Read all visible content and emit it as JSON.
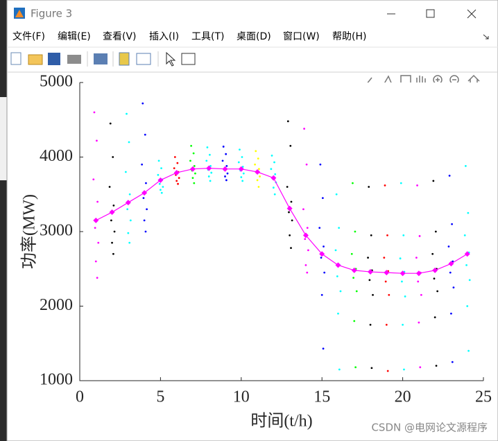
{
  "window": {
    "title": "Figure 3",
    "menu": [
      "文件(F)",
      "编辑(E)",
      "查看(V)",
      "插入(I)",
      "工具(T)",
      "桌面(D)",
      "窗口(W)",
      "帮助(H)"
    ]
  },
  "watermark": "CSDN @电网论文源程序",
  "chart_data": {
    "type": "scatter",
    "xlabel": "时间(t/h)",
    "ylabel": "功率(MW)",
    "xlim": [
      0,
      25
    ],
    "ylim": [
      1000,
      5000
    ],
    "xticks": [
      0,
      5,
      10,
      15,
      20,
      25
    ],
    "yticks": [
      1000,
      2000,
      3000,
      4000,
      5000
    ],
    "series": [
      {
        "color": "#ff00ff",
        "x": [
          0.9,
          1.05,
          0.85,
          1.1,
          0.95,
          1.15,
          1,
          1.08
        ],
        "values": [
          4600,
          4220,
          3700,
          3400,
          3050,
          2850,
          2600,
          2380
        ]
      },
      {
        "color": "#000000",
        "x": [
          1.9,
          2.05,
          1.85,
          2.1,
          1.95,
          2.15,
          2,
          2.08
        ],
        "values": [
          4450,
          4000,
          3600,
          3350,
          3150,
          3000,
          2850,
          2700
        ]
      },
      {
        "color": "#00ffff",
        "x": [
          2.9,
          3.05,
          2.85,
          3.1,
          2.95,
          3.15,
          3,
          3.08
        ],
        "values": [
          4580,
          4200,
          3800,
          3500,
          3300,
          3150,
          2980,
          2850
        ]
      },
      {
        "color": "#0000ff",
        "x": [
          3.9,
          4.05,
          3.85,
          4.1,
          3.95,
          4.15,
          4,
          4.08
        ],
        "values": [
          4720,
          4300,
          3900,
          3650,
          3450,
          3300,
          3150,
          3000
        ]
      },
      {
        "color": "#00ffff",
        "x": [
          4.9,
          5.05,
          4.85,
          5.1,
          4.95,
          5.15,
          5,
          5.08
        ],
        "values": [
          3950,
          3850,
          3760,
          3700,
          3640,
          3600,
          3560,
          3520
        ]
      },
      {
        "color": "#ff0000",
        "x": [
          5.9,
          6.05,
          5.85,
          6.1,
          5.95,
          6.15,
          6,
          6.08
        ],
        "values": [
          4000,
          3920,
          3850,
          3800,
          3760,
          3720,
          3680,
          3640
        ]
      },
      {
        "color": "#00ff00",
        "x": [
          6.9,
          7.05,
          6.85,
          7.1,
          6.95,
          7.15,
          7,
          7.08
        ],
        "values": [
          4150,
          4050,
          3950,
          3880,
          3820,
          3780,
          3720,
          3650
        ]
      },
      {
        "color": "#00ffff",
        "x": [
          7.9,
          8.05,
          7.85,
          8.1,
          7.95,
          8.15,
          8,
          8.08
        ],
        "values": [
          4130,
          4030,
          3950,
          3880,
          3830,
          3790,
          3740,
          3680
        ]
      },
      {
        "color": "#0000ff",
        "x": [
          8.9,
          9.05,
          8.85,
          9.1,
          8.95,
          9.15,
          9,
          9.08
        ],
        "values": [
          4140,
          4040,
          3950,
          3880,
          3830,
          3780,
          3740,
          3690
        ]
      },
      {
        "color": "#00ffff",
        "x": [
          9.9,
          10.05,
          9.85,
          10.1,
          9.95,
          10.15,
          10,
          10.08
        ],
        "values": [
          4100,
          4000,
          3930,
          3870,
          3820,
          3780,
          3730,
          3680
        ]
      },
      {
        "color": "#ffff00",
        "x": [
          10.9,
          11.05,
          10.85,
          11.1,
          10.95,
          11.15,
          11,
          11.08
        ],
        "values": [
          4080,
          3980,
          3900,
          3840,
          3790,
          3740,
          3690,
          3600
        ]
      },
      {
        "color": "#00ffff",
        "x": [
          11.9,
          12.05,
          11.85,
          12.1,
          11.95,
          12.15,
          12,
          12.08
        ],
        "values": [
          4020,
          3930,
          3840,
          3770,
          3710,
          3660,
          3590,
          3500
        ]
      },
      {
        "color": "#000000",
        "x": [
          12.9,
          13.05,
          12.85,
          13.1,
          12.95,
          13.15,
          13,
          13.08
        ],
        "values": [
          4480,
          4150,
          3600,
          3400,
          3260,
          3150,
          2950,
          2780
        ]
      },
      {
        "color": "#ff00ff",
        "x": [
          13.9,
          14.05,
          13.85,
          14.1,
          13.95,
          14.15,
          14,
          14.08
        ],
        "values": [
          4380,
          3900,
          3300,
          3050,
          2900,
          2750,
          2550,
          2450
        ]
      },
      {
        "color": "#0000ff",
        "x": [
          14.9,
          15.05,
          14.85,
          15.1,
          14.95,
          15.15,
          15,
          15.08
        ],
        "values": [
          3900,
          3450,
          3050,
          2800,
          2650,
          2450,
          2150,
          1430
        ]
      },
      {
        "color": "#00ffff",
        "x": [
          15.9,
          16.05,
          15.85,
          16.1,
          15.95,
          16.15,
          16,
          16.08
        ],
        "values": [
          3500,
          3050,
          2750,
          2550,
          2400,
          2200,
          1900,
          1150
        ]
      },
      {
        "color": "#00ff00",
        "x": [
          16.9,
          17.05,
          16.85,
          17.1,
          16.95,
          17.15,
          17,
          17.08
        ],
        "values": [
          3650,
          3000,
          2700,
          2500,
          2380,
          2200,
          1800,
          1180
        ]
      },
      {
        "color": "#000000",
        "x": [
          17.9,
          18.05,
          17.85,
          18.1,
          17.95,
          18.15,
          18,
          18.08
        ],
        "values": [
          3600,
          2950,
          2650,
          2480,
          2350,
          2150,
          1750,
          1170
        ]
      },
      {
        "color": "#ff0000",
        "x": [
          18.9,
          19.05,
          18.85,
          19.1,
          18.95,
          19.15,
          19,
          19.08
        ],
        "values": [
          3620,
          2950,
          2650,
          2470,
          2330,
          2150,
          1750,
          1130
        ]
      },
      {
        "color": "#00ffff",
        "x": [
          19.9,
          20.05,
          19.85,
          20.1,
          19.95,
          20.15,
          20,
          20.08
        ],
        "values": [
          3650,
          2950,
          2640,
          2460,
          2330,
          2130,
          1750,
          1150
        ]
      },
      {
        "color": "#ff00ff",
        "x": [
          20.9,
          21.05,
          20.85,
          21.1,
          20.95,
          21.15,
          21,
          21.08
        ],
        "values": [
          3620,
          2940,
          2650,
          2450,
          2330,
          2150,
          1780,
          1180
        ]
      },
      {
        "color": "#000000",
        "x": [
          21.9,
          22.05,
          21.85,
          22.1,
          21.95,
          22.15,
          22,
          22.08
        ],
        "values": [
          3680,
          3000,
          2700,
          2500,
          2370,
          2200,
          1850,
          1200
        ]
      },
      {
        "color": "#0000ff",
        "x": [
          22.9,
          23.05,
          22.85,
          23.1,
          22.95,
          23.15,
          23,
          23.08
        ],
        "values": [
          3750,
          3100,
          2800,
          2600,
          2450,
          2250,
          1900,
          1250
        ]
      },
      {
        "color": "#00ffff",
        "x": [
          23.9,
          24.05,
          23.85,
          24.1,
          23.95,
          24.15,
          24,
          24.08
        ],
        "values": [
          3880,
          3250,
          2950,
          2720,
          2550,
          2350,
          2000,
          1400
        ]
      }
    ],
    "line": {
      "color": "#ff00ff",
      "x": [
        1,
        2,
        3,
        4,
        5,
        6,
        7,
        8,
        9,
        10,
        11,
        12,
        13,
        14,
        15,
        16,
        17,
        18,
        19,
        20,
        21,
        22,
        23,
        24
      ],
      "values": [
        3150,
        3260,
        3390,
        3520,
        3690,
        3790,
        3840,
        3850,
        3840,
        3840,
        3800,
        3720,
        3310,
        2950,
        2700,
        2550,
        2480,
        2460,
        2450,
        2440,
        2440,
        2480,
        2570,
        2700
      ]
    }
  }
}
